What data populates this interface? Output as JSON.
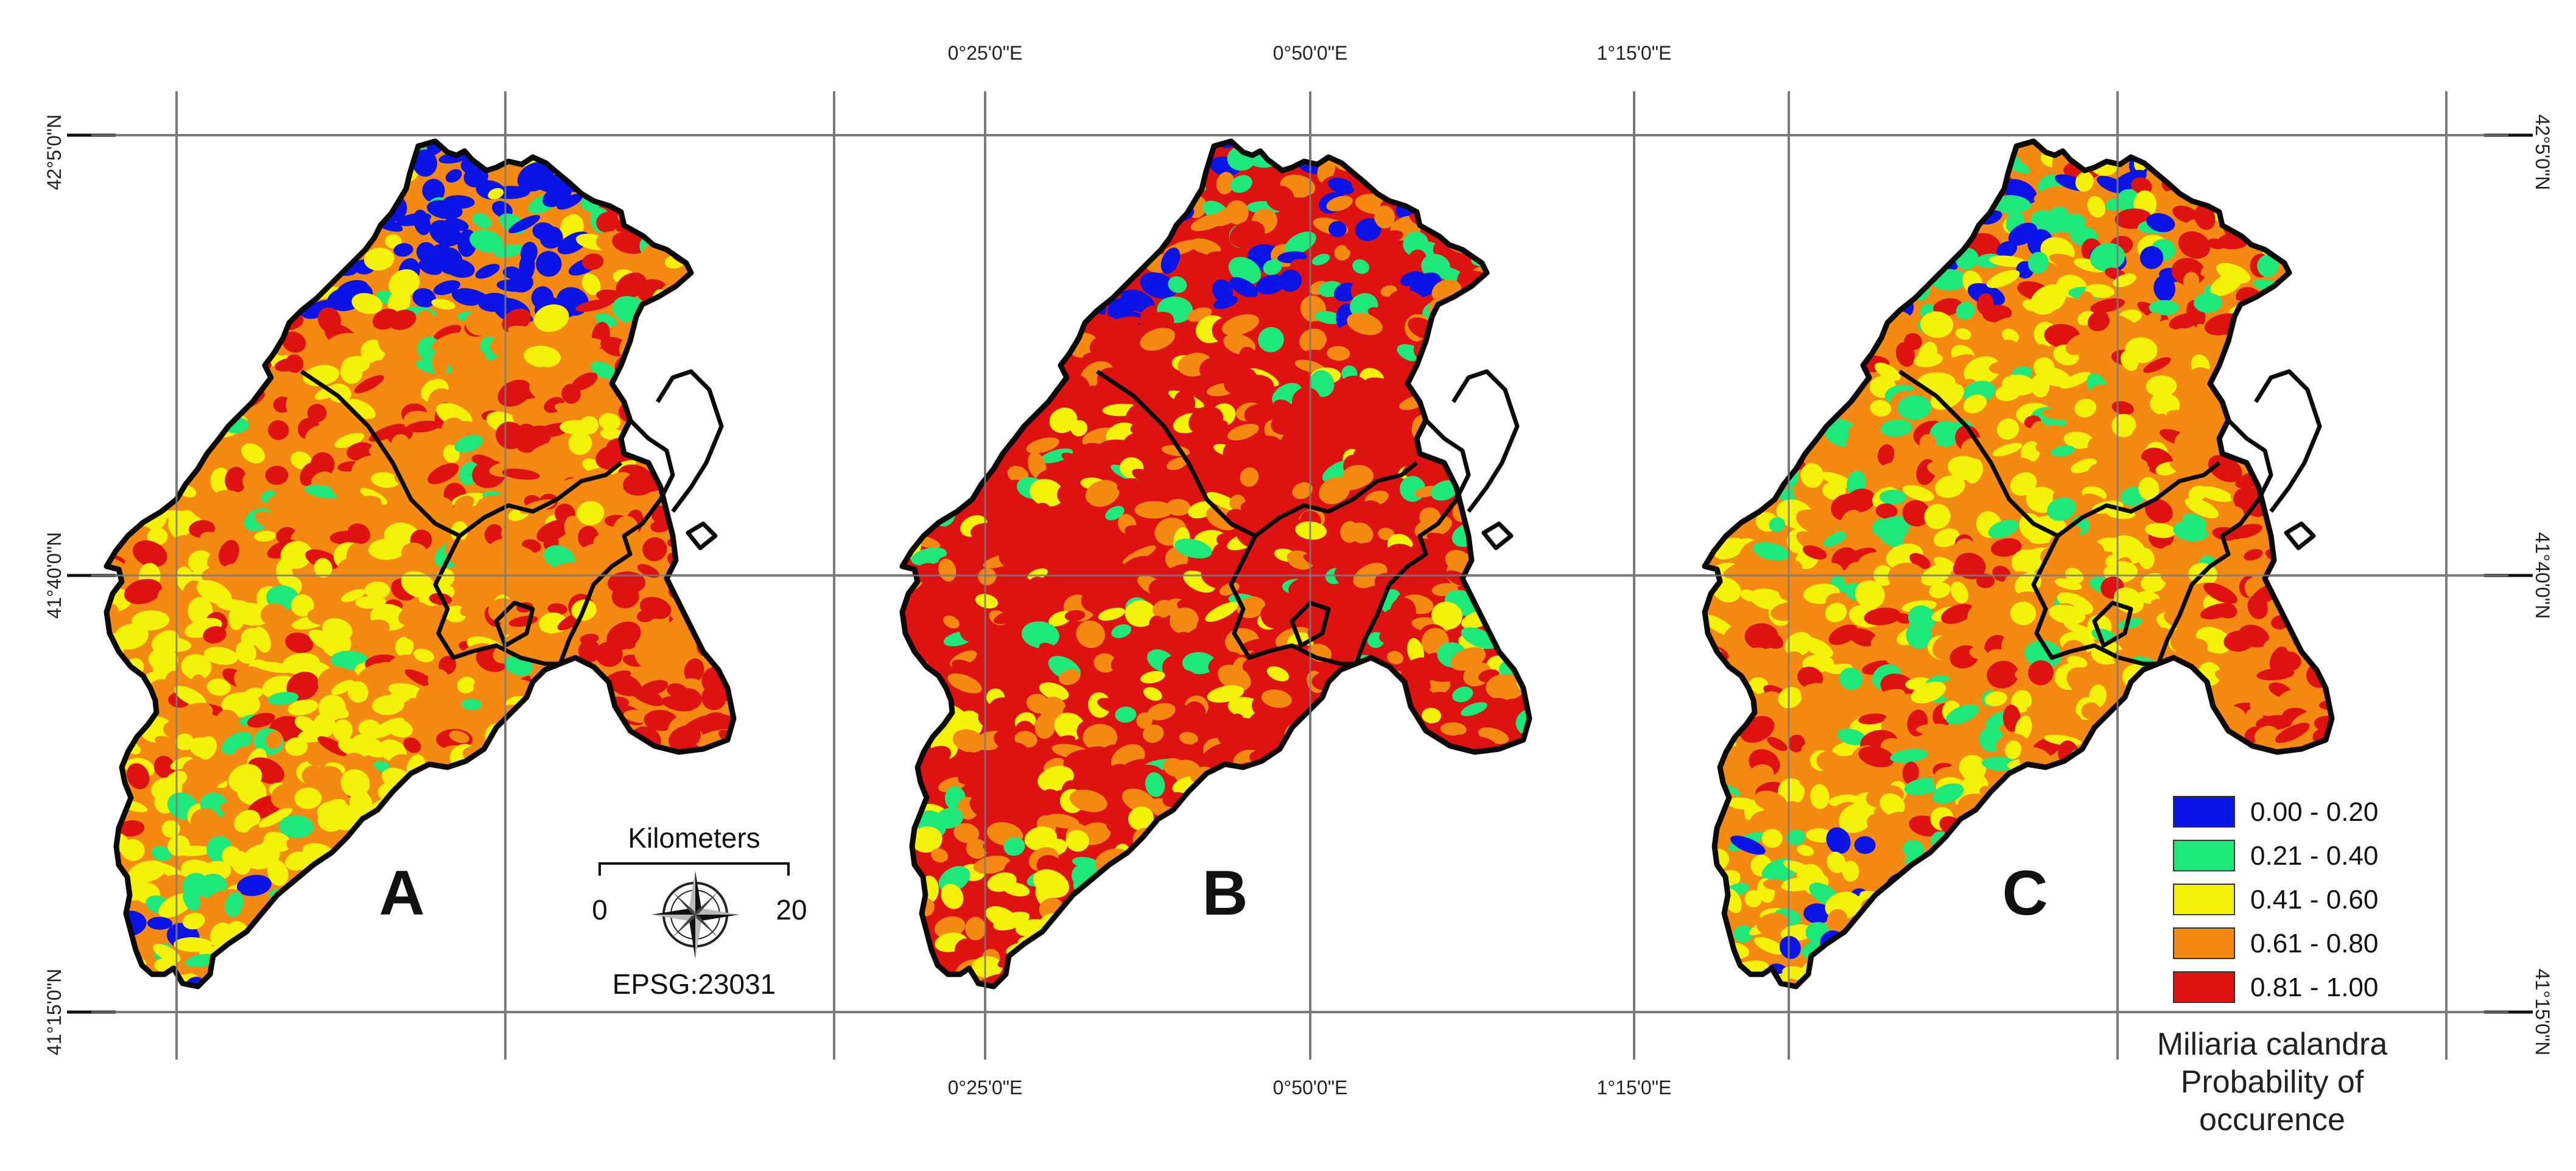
{
  "panels": [
    {
      "letter": "A",
      "low_zone": "north",
      "dominant": "mixed"
    },
    {
      "letter": "B",
      "low_zone": "scattered",
      "dominant": "high"
    },
    {
      "letter": "C",
      "low_zone": "partial",
      "dominant": "medium"
    }
  ],
  "latitude_labels": [
    "42°5'0\"N",
    "41°40'0\"N",
    "41°15'0\"N"
  ],
  "longitude_labels": [
    "0°25'0\"E",
    "0°50'0\"E",
    "1°15'0\"E"
  ],
  "scale_bar": {
    "title": "Kilometers",
    "start": "0",
    "end": "20",
    "crs": "EPSG:23031"
  },
  "legend": {
    "classes": [
      {
        "label": "0.00 - 0.20",
        "color": "#0a14e6"
      },
      {
        "label": "0.21 - 0.40",
        "color": "#1ee87a"
      },
      {
        "label": "0.41 - 0.60",
        "color": "#f5f20a"
      },
      {
        "label": "0.61 - 0.80",
        "color": "#f58a12"
      },
      {
        "label": "0.81 - 1.00",
        "color": "#df1212"
      }
    ],
    "title_lines": [
      "Miliaria calandra",
      "Probability of",
      "occurence"
    ]
  },
  "colors": {
    "grid": "#7a7a7a",
    "outline": "#0b0b0b"
  }
}
